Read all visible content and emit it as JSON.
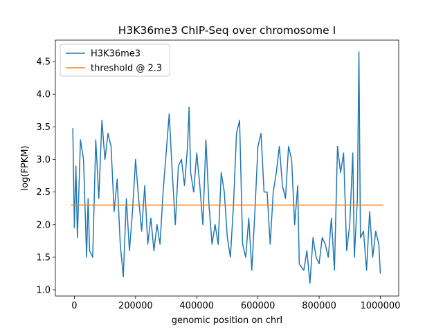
{
  "chart_data": {
    "type": "line",
    "title": "H3K36me3 ChIP-Seq over chromosome I",
    "x_label": "genomic position on chrI",
    "y_label": "log(FPKM)",
    "xlim": [
      -62000,
      1060000
    ],
    "ylim": [
      0.905,
      4.83
    ],
    "xticks": [
      0,
      200000,
      400000,
      600000,
      800000,
      1000000
    ],
    "yticks": [
      {
        "value": 1,
        "label": "1.0"
      },
      {
        "value": 1.5,
        "label": "1.5"
      },
      {
        "value": 2,
        "label": "2.0"
      },
      {
        "value": 2.5,
        "label": "2.5"
      },
      {
        "value": 3,
        "label": "3.0"
      },
      {
        "value": 3.5,
        "label": "3.5"
      },
      {
        "value": 4,
        "label": "4.0"
      },
      {
        "value": 4.5,
        "label": "4.5"
      }
    ],
    "legend_position": "upper left",
    "series": [
      {
        "name": "H3K36me3",
        "color": "#1f77b4",
        "x": [
          -5000,
          0,
          5000,
          10000,
          20000,
          30000,
          40000,
          45000,
          50000,
          60000,
          70000,
          80000,
          90000,
          100000,
          110000,
          120000,
          130000,
          140000,
          150000,
          160000,
          170000,
          180000,
          190000,
          200000,
          210000,
          220000,
          230000,
          240000,
          250000,
          260000,
          270000,
          280000,
          290000,
          300000,
          310000,
          320000,
          330000,
          340000,
          350000,
          360000,
          370000,
          375000,
          380000,
          390000,
          400000,
          410000,
          420000,
          430000,
          440000,
          450000,
          460000,
          470000,
          480000,
          490000,
          500000,
          510000,
          520000,
          530000,
          540000,
          550000,
          560000,
          570000,
          580000,
          590000,
          600000,
          610000,
          620000,
          630000,
          640000,
          650000,
          660000,
          670000,
          680000,
          690000,
          700000,
          710000,
          720000,
          730000,
          735000,
          750000,
          760000,
          770000,
          780000,
          790000,
          800000,
          810000,
          820000,
          830000,
          840000,
          850000,
          860000,
          870000,
          880000,
          890000,
          900000,
          910000,
          915000,
          925000,
          930000,
          935000,
          945000,
          955000,
          965000,
          975000,
          985000,
          995000,
          1000000
        ],
        "values": [
          3.48,
          1.95,
          2.9,
          1.8,
          3.3,
          3.0,
          1.5,
          2.4,
          1.6,
          1.5,
          3.3,
          2.4,
          3.6,
          3.0,
          3.4,
          3.2,
          2.2,
          2.7,
          1.7,
          1.2,
          2.4,
          1.6,
          2.2,
          3.0,
          2.4,
          1.9,
          2.6,
          1.7,
          2.1,
          1.6,
          2.0,
          1.7,
          2.5,
          3.1,
          3.7,
          2.8,
          2.0,
          2.9,
          3.0,
          2.6,
          3.2,
          3.8,
          2.8,
          2.5,
          3.1,
          2.6,
          2.0,
          3.3,
          2.3,
          1.7,
          2.0,
          1.7,
          2.8,
          2.5,
          1.8,
          1.5,
          2.3,
          3.4,
          3.6,
          1.7,
          1.5,
          2.1,
          1.3,
          2.2,
          3.2,
          3.4,
          2.5,
          2.5,
          1.7,
          2.5,
          2.8,
          3.2,
          2.6,
          2.4,
          3.2,
          3.0,
          2.0,
          2.6,
          1.4,
          1.3,
          1.6,
          1.1,
          1.8,
          1.5,
          1.4,
          1.8,
          1.7,
          1.5,
          2.1,
          1.3,
          3.2,
          2.8,
          3.1,
          1.6,
          2.0,
          3.1,
          1.5,
          2.4,
          4.65,
          1.8,
          1.9,
          1.3,
          2.2,
          1.5,
          1.9,
          1.7,
          1.25
        ]
      },
      {
        "name": "threshold @ 2.3",
        "color": "#ff7f0e",
        "x": [
          -11000,
          1009000
        ],
        "values": [
          2.3,
          2.3
        ]
      }
    ]
  }
}
